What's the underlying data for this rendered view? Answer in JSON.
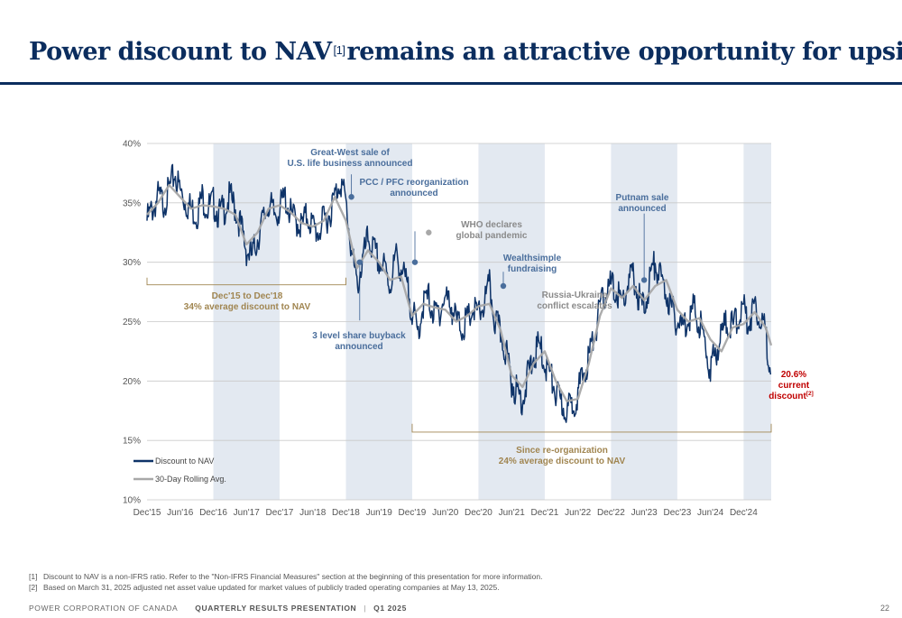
{
  "header": {
    "title_part1": "Power discount to NAV",
    "title_sup": "[1]",
    "title_part2": "remains an attractive opportunity for upside"
  },
  "colors": {
    "navy": "#0b2d5e",
    "series_navy": "#0e3368",
    "rolling_gray": "#a8a8a8",
    "shade": "#e3e9f1",
    "annotation_blue": "#4a6e9c",
    "annotation_gold": "#a08550",
    "current_red": "#c00000"
  },
  "chart_data": {
    "type": "line",
    "ylim": [
      10,
      40
    ],
    "yticks": [
      10,
      15,
      20,
      25,
      30,
      35,
      40
    ],
    "ytick_labels": [
      "10%",
      "15%",
      "20%",
      "25%",
      "30%",
      "35%",
      "40%"
    ],
    "x_ticks": [
      "Dec'15",
      "Jun'16",
      "Dec'16",
      "Jun'17",
      "Dec'17",
      "Jun'18",
      "Dec'18",
      "Jun'19",
      "Dec'19",
      "Jun'20",
      "Dec'20",
      "Jun'21",
      "Dec'21",
      "Jun'22",
      "Dec'22",
      "Jun'23",
      "Dec'23",
      "Jun'24",
      "Dec'24"
    ],
    "x_range_months": [
      0,
      113
    ],
    "shaded_periods_months": [
      [
        12,
        24
      ],
      [
        36,
        48
      ],
      [
        60,
        72
      ],
      [
        84,
        96
      ],
      [
        108,
        113
      ]
    ],
    "series": [
      {
        "name": "Discount to NAV",
        "months": [
          0,
          1,
          2,
          3,
          4,
          5,
          6,
          7,
          8,
          9,
          10,
          11,
          12,
          13,
          14,
          15,
          16,
          17,
          18,
          19,
          20,
          21,
          22,
          23,
          24,
          25,
          26,
          27,
          28,
          29,
          30,
          31,
          32,
          33,
          34,
          35,
          36,
          37,
          38,
          39,
          40,
          41,
          42,
          43,
          44,
          45,
          46,
          47,
          48,
          49,
          50,
          51,
          52,
          53,
          54,
          55,
          56,
          57,
          58,
          59,
          60,
          61,
          62,
          63,
          64,
          65,
          66,
          67,
          68,
          69,
          70,
          71,
          72,
          73,
          74,
          75,
          76,
          77,
          78,
          79,
          80,
          81,
          82,
          83,
          84,
          85,
          86,
          87,
          88,
          89,
          90,
          91,
          92,
          93,
          94,
          95,
          96,
          97,
          98,
          99,
          100,
          101,
          102,
          103,
          104,
          105,
          106,
          107,
          108,
          109,
          110,
          111,
          112,
          113
        ],
        "values": [
          33.5,
          34.5,
          35.5,
          35,
          36,
          37.5,
          36,
          35,
          34.5,
          34,
          35.5,
          34.5,
          35,
          34,
          34.5,
          35.5,
          34.5,
          33,
          31,
          30.5,
          32,
          33.5,
          35,
          34,
          34.5,
          35.5,
          34,
          33.5,
          33,
          34,
          33,
          32.5,
          33.5,
          34,
          35.5,
          37,
          35,
          31,
          28,
          30,
          32,
          31,
          30,
          29.5,
          28,
          30.5,
          29.5,
          28,
          26,
          24,
          26.5,
          27,
          25.5,
          26,
          27,
          26.5,
          25,
          24.5,
          25,
          26,
          25.5,
          26.5,
          28,
          25,
          24,
          22.5,
          20,
          19,
          18.5,
          20.5,
          22,
          23,
          21.5,
          20.5,
          19,
          18,
          17.5,
          18,
          19,
          20.5,
          22,
          24,
          26,
          27.5,
          28,
          27.5,
          26.5,
          28,
          29,
          27,
          26,
          28.5,
          30,
          28.5,
          27.5,
          26,
          25,
          24.5,
          25.5,
          26,
          25,
          23,
          21,
          22.5,
          24,
          25,
          24.5,
          25.5,
          26,
          25,
          26.5,
          25.5,
          24,
          20.6
        ]
      },
      {
        "name": "30-Day Rolling Avg.",
        "months": [
          0,
          2,
          4,
          6,
          8,
          10,
          12,
          14,
          16,
          18,
          20,
          22,
          24,
          26,
          28,
          30,
          32,
          34,
          36,
          38,
          40,
          42,
          44,
          46,
          48,
          50,
          52,
          54,
          56,
          58,
          60,
          62,
          64,
          66,
          68,
          70,
          72,
          74,
          76,
          78,
          80,
          82,
          84,
          86,
          88,
          90,
          92,
          94,
          96,
          98,
          100,
          102,
          104,
          106,
          108,
          110,
          112,
          113
        ],
        "values": [
          34,
          35,
          36.5,
          35.5,
          34.5,
          34.8,
          34.7,
          34.5,
          34,
          31.5,
          32.5,
          34.5,
          34.8,
          34.2,
          33.3,
          33,
          33.5,
          35.5,
          33.5,
          29.5,
          31,
          30,
          28.5,
          28.8,
          25.5,
          26.5,
          26.2,
          26,
          25,
          25.5,
          26.3,
          26.5,
          24.3,
          20.5,
          19.5,
          21.5,
          22.5,
          20,
          18.3,
          18.5,
          21.5,
          25.5,
          27.8,
          27,
          28,
          26.8,
          28,
          28.5,
          26,
          25,
          25.3,
          23.5,
          22.5,
          24.5,
          24.8,
          25.8,
          24.5,
          23
        ]
      }
    ],
    "event_markers": [
      {
        "month": 37,
        "value": 35.5,
        "on": "rolling"
      },
      {
        "month": 38.5,
        "value": 30,
        "on": "rolling"
      },
      {
        "month": 48.5,
        "value": 30,
        "on": "rolling"
      },
      {
        "month": 51,
        "value": 32.5,
        "on": "rolling"
      },
      {
        "month": 64.5,
        "value": 28,
        "on": "rolling"
      },
      {
        "month": 90,
        "value": 28.5,
        "on": "rolling"
      }
    ],
    "annotations": {
      "great_west": [
        "Great-West sale of",
        "U.S. life business announced"
      ],
      "pcc_pfc": [
        "PCC / PFC reorganization",
        "announced"
      ],
      "who": [
        "WHO declares",
        "global pandemic"
      ],
      "wealthsimple": [
        "Wealthsimple",
        "fundraising"
      ],
      "putnam": [
        "Putnam sale",
        "announced"
      ],
      "russia": [
        "Russia-Ukraine",
        "conflict escalates"
      ],
      "buyback": [
        "3 level share buyback",
        "announced"
      ],
      "period1": [
        "Dec'15 to Dec'18",
        "34% average discount to NAV"
      ],
      "period2": [
        "Since re-organization",
        "24% average discount to NAV"
      ],
      "current_value": "20.6%",
      "current_line2": "current",
      "current_line3": "discount",
      "current_sup": "[2]"
    },
    "legend": {
      "placement": "bottom-left",
      "items": [
        "Discount to NAV",
        "30-Day Rolling Avg."
      ]
    }
  },
  "footnotes": [
    {
      "num": "[1]",
      "text": "Discount to NAV is a non-IFRS ratio. Refer to the \"Non-IFRS Financial Measures\" section at the beginning of this presentation for more information."
    },
    {
      "num": "[2]",
      "text": "Based on March 31, 2025 adjusted net asset value updated for market values of publicly traded operating companies at May 13, 2025."
    }
  ],
  "footer": {
    "company": "POWER CORPORATION OF CANADA",
    "presentation": "QUARTERLY RESULTS PRESENTATION",
    "separator": "|",
    "quarter": "Q1 2025",
    "page": "22"
  }
}
